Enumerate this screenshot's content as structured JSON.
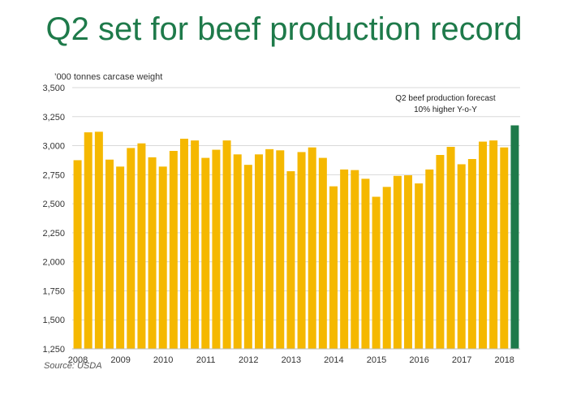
{
  "title": "Q2 set for beef production record",
  "unit_label": "’000 tonnes carcase weight",
  "annotation": [
    "Q2 beef production forecast",
    "10% higher Y-o-Y"
  ],
  "source": "Source: USDA",
  "colors": {
    "bar": "#f5b800",
    "highlight": "#1e7a4a",
    "grid": "#d9d9d9",
    "title": "#1e7a4a"
  },
  "chart_data": {
    "type": "bar",
    "xlabel": "",
    "ylabel": "’000 tonnes carcase weight",
    "ylim": [
      1250,
      3500
    ],
    "yticks": [
      1250,
      1500,
      1750,
      2000,
      2250,
      2500,
      2750,
      3000,
      3250,
      3500
    ],
    "ytick_labels": [
      "1,250",
      "1,500",
      "1,750",
      "2,000",
      "2,250",
      "2,500",
      "2,750",
      "3,000",
      "3,250",
      "3,500"
    ],
    "x_tick_labels": [
      "2008",
      "2009",
      "2010",
      "2011",
      "2012",
      "2013",
      "2014",
      "2015",
      "2016",
      "2017",
      "2018"
    ],
    "grid": "horizontal",
    "categories": [
      "2008 Q1",
      "2008 Q2",
      "2008 Q3",
      "2008 Q4",
      "2009 Q1",
      "2009 Q2",
      "2009 Q3",
      "2009 Q4",
      "2010 Q1",
      "2010 Q2",
      "2010 Q3",
      "2010 Q4",
      "2011 Q1",
      "2011 Q2",
      "2011 Q3",
      "2011 Q4",
      "2012 Q1",
      "2012 Q2",
      "2012 Q3",
      "2012 Q4",
      "2013 Q1",
      "2013 Q2",
      "2013 Q3",
      "2013 Q4",
      "2014 Q1",
      "2014 Q2",
      "2014 Q3",
      "2014 Q4",
      "2015 Q1",
      "2015 Q2",
      "2015 Q3",
      "2015 Q4",
      "2016 Q1",
      "2016 Q2",
      "2016 Q3",
      "2016 Q4",
      "2017 Q1",
      "2017 Q2",
      "2017 Q3",
      "2017 Q4",
      "2018 Q1",
      "2018 Q2"
    ],
    "values": [
      2875,
      3115,
      3120,
      2880,
      2820,
      2980,
      3020,
      2900,
      2820,
      2955,
      3060,
      3045,
      2895,
      2965,
      3045,
      2925,
      2835,
      2925,
      2970,
      2960,
      2780,
      2945,
      2985,
      2895,
      2650,
      2795,
      2790,
      2715,
      2560,
      2645,
      2740,
      2745,
      2675,
      2795,
      2920,
      2990,
      2840,
      2885,
      3035,
      3045,
      2985,
      3175
    ],
    "highlight_index": 41
  }
}
